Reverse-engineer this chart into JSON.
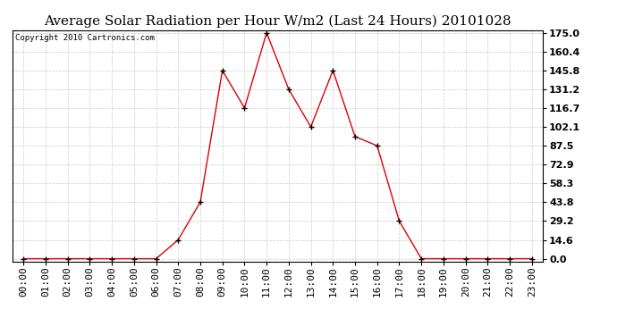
{
  "title": "Average Solar Radiation per Hour W/m2 (Last 24 Hours) 20101028",
  "copyright": "Copyright 2010 Cartronics.com",
  "x_labels": [
    "00:00",
    "01:00",
    "02:00",
    "03:00",
    "04:00",
    "05:00",
    "06:00",
    "07:00",
    "08:00",
    "09:00",
    "10:00",
    "11:00",
    "12:00",
    "13:00",
    "14:00",
    "15:00",
    "16:00",
    "17:00",
    "18:00",
    "19:00",
    "20:00",
    "21:00",
    "22:00",
    "23:00"
  ],
  "y_values": [
    0.0,
    0.0,
    0.0,
    0.0,
    0.0,
    0.0,
    0.0,
    14.6,
    43.8,
    145.8,
    116.7,
    175.0,
    131.2,
    102.1,
    145.8,
    94.6,
    87.5,
    29.2,
    0.0,
    0.0,
    0.0,
    0.0,
    0.0,
    0.0
  ],
  "y_ticks": [
    0.0,
    14.6,
    29.2,
    43.8,
    58.3,
    72.9,
    87.5,
    102.1,
    116.7,
    131.2,
    145.8,
    160.4,
    175.0
  ],
  "y_tick_labels": [
    "0.0",
    "14.6",
    "29.2",
    "43.8",
    "58.3",
    "72.9",
    "87.5",
    "102.1",
    "116.7",
    "131.2",
    "145.8",
    "160.4",
    "175.0"
  ],
  "y_min": 0.0,
  "y_max": 175.0,
  "line_color": "#dd0000",
  "marker": "+",
  "marker_size": 5,
  "marker_color": "#000000",
  "grid_color": "#cccccc",
  "background_color": "#ffffff",
  "plot_bg_color": "#ffffff",
  "title_fontsize": 11,
  "copyright_fontsize": 6.5,
  "tick_fontsize": 8,
  "ytick_fontsize": 8
}
